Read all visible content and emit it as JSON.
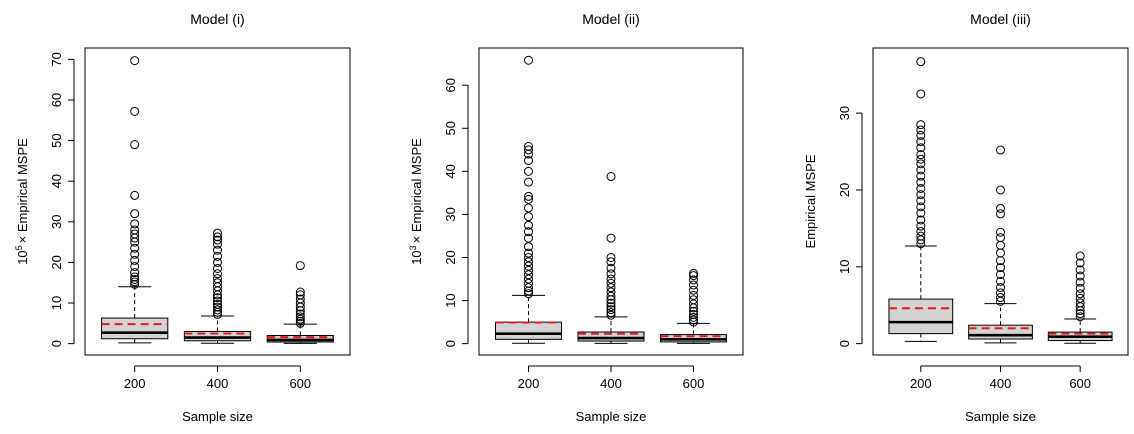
{
  "chart_data": [
    {
      "type": "boxplot",
      "title": "Model (i)",
      "xlabel": "Sample size",
      "ylabel_prefix": "10",
      "ylabel_exp": "5",
      "ylabel_suffix": "× Empirical MSPE",
      "ylim": [
        0,
        70
      ],
      "yticks": [
        0,
        10,
        20,
        30,
        40,
        50,
        60,
        70
      ],
      "categories": [
        "200",
        "400",
        "600"
      ],
      "grid": false,
      "mean_color": "#e41a1c",
      "box_fill": "#d3d3d3",
      "series": [
        {
          "category": "200",
          "min": 0.2,
          "q1": 1.2,
          "median": 2.7,
          "q3": 6.3,
          "max": 14.0,
          "mean": 4.8,
          "outliers": [
            14.6,
            15.2,
            15.8,
            16.4,
            17.5,
            19.0,
            20.5,
            22.0,
            23.5,
            25.0,
            26.0,
            27.0,
            28.0,
            29.5,
            32.0,
            36.5,
            49.0,
            57.2,
            69.7
          ]
        },
        {
          "category": "400",
          "min": 0.1,
          "q1": 0.7,
          "median": 1.5,
          "q3": 3.0,
          "max": 6.8,
          "mean": 2.5,
          "outliers": [
            7.2,
            7.7,
            8.3,
            9.0,
            9.7,
            10.5,
            11.3,
            12.0,
            13.0,
            14.0,
            15.0,
            16.0,
            17.2,
            18.5,
            20.0,
            21.5,
            23.0,
            24.5,
            25.5,
            26.3,
            27.2
          ]
        },
        {
          "category": "600",
          "min": 0.05,
          "q1": 0.4,
          "median": 0.9,
          "q3": 2.0,
          "max": 4.8,
          "mean": 1.6,
          "outliers": [
            5.0,
            5.5,
            6.0,
            6.6,
            7.3,
            8.1,
            9.0,
            10.0,
            11.0,
            12.0,
            12.7,
            19.2
          ]
        }
      ]
    },
    {
      "type": "boxplot",
      "title": "Model (ii)",
      "xlabel": "Sample size",
      "ylabel_prefix": "10",
      "ylabel_exp": "3",
      "ylabel_suffix": "× Empirical MSPE",
      "ylim": [
        0,
        66
      ],
      "yticks": [
        0,
        10,
        20,
        30,
        40,
        50,
        60
      ],
      "categories": [
        "200",
        "400",
        "600"
      ],
      "grid": false,
      "mean_color": "#e41a1c",
      "box_fill": "#d3d3d3",
      "series": [
        {
          "category": "200",
          "min": 0.1,
          "q1": 1.0,
          "median": 2.3,
          "q3": 5.0,
          "max": 11.2,
          "mean": 4.9,
          "outliers": [
            11.6,
            12.2,
            13.0,
            14.0,
            15.0,
            16.0,
            17.0,
            18.0,
            19.0,
            20.0,
            21.0,
            22.5,
            24.5,
            26.0,
            27.5,
            29.5,
            31.5,
            33.5,
            34.2,
            37.5,
            40.0,
            42.5,
            44.0,
            45.0,
            45.8,
            65.8
          ]
        },
        {
          "category": "400",
          "min": 0.05,
          "q1": 0.6,
          "median": 1.3,
          "q3": 2.7,
          "max": 6.2,
          "mean": 2.3,
          "outliers": [
            6.6,
            7.2,
            7.9,
            8.6,
            9.4,
            10.2,
            11.0,
            12.0,
            13.0,
            14.0,
            15.0,
            16.2,
            17.5,
            19.0,
            20.0,
            24.5,
            38.8
          ]
        },
        {
          "category": "600",
          "min": 0.05,
          "q1": 0.4,
          "median": 1.0,
          "q3": 2.1,
          "max": 4.7,
          "mean": 1.7,
          "outliers": [
            5.0,
            5.5,
            6.1,
            6.8,
            7.5,
            8.3,
            9.2,
            10.2,
            11.2,
            12.4,
            13.6,
            14.8,
            15.8,
            16.3
          ]
        }
      ]
    },
    {
      "type": "boxplot",
      "title": "Model (iii)",
      "xlabel": "Sample size",
      "ylabel_prefix": "",
      "ylabel_exp": "",
      "ylabel_suffix": "Empirical MSPE",
      "ylim": [
        0,
        37
      ],
      "yticks": [
        0,
        10,
        20,
        30
      ],
      "categories": [
        "200",
        "400",
        "600"
      ],
      "grid": false,
      "mean_color": "#e41a1c",
      "box_fill": "#d3d3d3",
      "series": [
        {
          "category": "200",
          "min": 0.3,
          "q1": 1.3,
          "median": 2.8,
          "q3": 5.8,
          "max": 12.7,
          "mean": 4.6,
          "outliers": [
            13.0,
            13.5,
            14.0,
            14.6,
            15.3,
            16.1,
            17.0,
            17.8,
            18.6,
            19.4,
            20.2,
            21.0,
            21.8,
            22.6,
            23.4,
            24.0,
            24.6,
            25.5,
            26.3,
            27.1,
            27.8,
            28.5,
            32.5,
            36.7
          ]
        },
        {
          "category": "400",
          "min": 0.1,
          "q1": 0.6,
          "median": 1.1,
          "q3": 2.4,
          "max": 5.2,
          "mean": 2.0,
          "outliers": [
            5.5,
            6.0,
            6.6,
            7.3,
            8.1,
            9.0,
            9.9,
            10.8,
            11.8,
            12.8,
            13.8,
            14.5,
            16.9,
            17.6,
            20.0,
            25.2
          ]
        },
        {
          "category": "600",
          "min": 0.05,
          "q1": 0.4,
          "median": 0.9,
          "q3": 1.5,
          "max": 3.2,
          "mean": 1.3,
          "outliers": [
            3.5,
            3.9,
            4.3,
            4.8,
            5.3,
            5.9,
            6.5,
            7.2,
            8.0,
            8.8,
            9.6,
            10.5,
            11.4
          ]
        }
      ]
    }
  ]
}
